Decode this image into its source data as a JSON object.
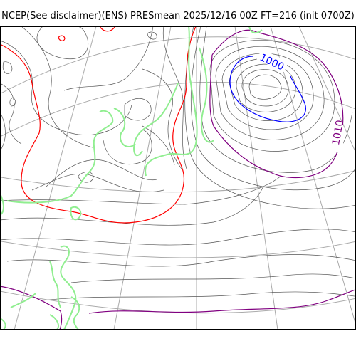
{
  "title": "NCEP(See disclaimer)(ENS) PRESmean 2025/12/16 00Z FT=216 (init 0700Z)",
  "colors": {
    "isobar_thin": "#555555",
    "isobar_1000": "#0000ff",
    "isobar_1010": "#800080",
    "isobar_1020": "#ff0000",
    "coastline": "#90ee90",
    "graticule": "#aaaaaa",
    "frame": "#000000"
  },
  "contour_labels": {
    "low_center": "1000",
    "side_isobar": "1010"
  }
}
